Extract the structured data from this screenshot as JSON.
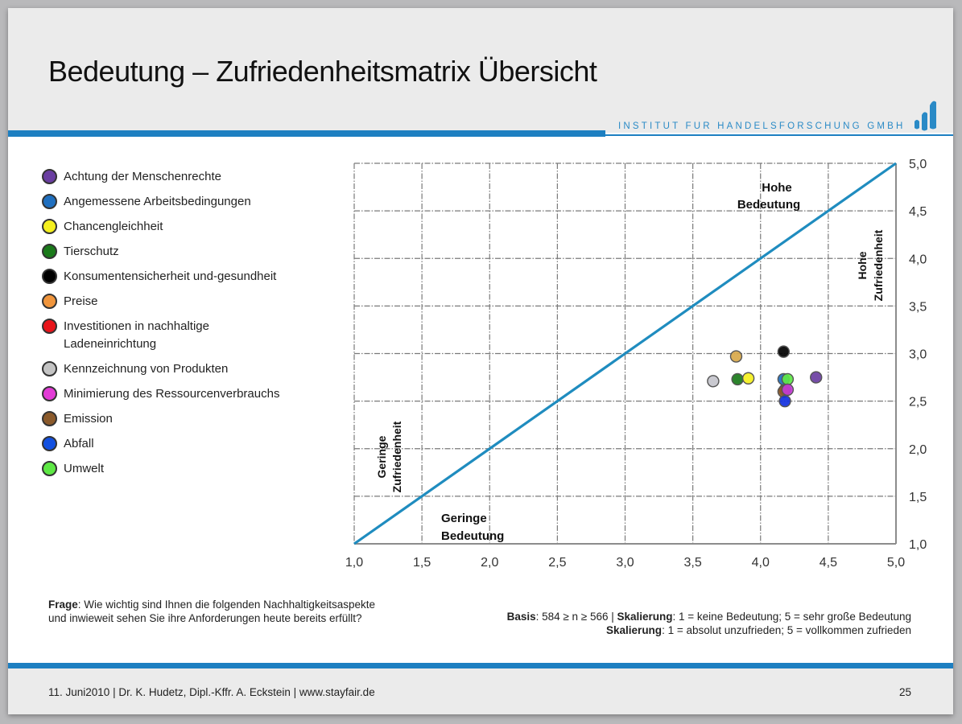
{
  "slide": {
    "title": "Bedeutung – Zufriedenheitsmatrix Übersicht",
    "brand": "INSTITUT FUR HANDELSFORSCHUNG GMBH",
    "brand_logo_icon": "bar-signal-logo-icon",
    "colors": {
      "accent": "#1d7fc1",
      "header_bg": "#ebebeb",
      "diagonal": "#1f8cbf",
      "grid": "#7a7a7a"
    }
  },
  "legend": {
    "items": [
      {
        "label": "Achtung der Menschenrechte",
        "color": "#6a3ea1"
      },
      {
        "label": "Angemessene Arbeitsbedingungen",
        "color": "#1f6fbf"
      },
      {
        "label": "Chancengleichheit",
        "color": "#f5f01e"
      },
      {
        "label": "Tierschutz",
        "color": "#1a7a1a"
      },
      {
        "label": "Konsumentensicherheit und-gesundheit",
        "color": "#000000"
      },
      {
        "label": "Preise",
        "color": "#f0953c"
      },
      {
        "label": "Investitionen in nachhaltige Ladeneinrichtung",
        "color": "#e8141a"
      },
      {
        "label": "Kennzeichnung von Produkten",
        "color": "#c4c4c4"
      },
      {
        "label": "Minimierung des Ressourcenverbrauchs",
        "color": "#e23bd6"
      },
      {
        "label": "Emission",
        "color": "#8b5a2b"
      },
      {
        "label": "Abfall",
        "color": "#1250e0"
      },
      {
        "label": "Umwelt",
        "color": "#5ee845"
      }
    ]
  },
  "chart_data": {
    "type": "scatter",
    "title": "Bedeutung – Zufriedenheitsmatrix Übersicht",
    "xlabel": "Bedeutung",
    "ylabel": "Zufriedenheit",
    "xlim": [
      1.0,
      5.0
    ],
    "ylim": [
      1.0,
      5.0
    ],
    "x_ticks": [
      "1,0",
      "1,5",
      "2,0",
      "2,5",
      "3,0",
      "3,5",
      "4,0",
      "4,5",
      "5,0"
    ],
    "y_ticks": [
      "1,0",
      "1,5",
      "2,0",
      "2,5",
      "3,0",
      "3,5",
      "4,0",
      "4,5",
      "5,0"
    ],
    "y_axis_position": "right",
    "grid": true,
    "reference_line": {
      "from": [
        1.0,
        1.0
      ],
      "to": [
        5.0,
        5.0
      ],
      "color": "#1f8cbf"
    },
    "annotations": [
      {
        "text": "Hohe Bedeutung",
        "lines": [
          "Hohe",
          "Bedeutung"
        ]
      },
      {
        "text": "Hohe Zufriedenheit",
        "lines": [
          "Hohe",
          "Zufriedenheit"
        ],
        "rotated": true
      },
      {
        "text": "Geringe Zufriedenheit",
        "lines": [
          "Geringe",
          "Zufriedenheit"
        ],
        "rotated": true
      },
      {
        "text": "Geringe Bedeutung",
        "lines": [
          "Geringe",
          "Bedeutung"
        ]
      }
    ],
    "legend_position": "left",
    "series": [
      {
        "name": "Achtung der Menschenrechte",
        "color": "#6a3ea1",
        "x": 4.41,
        "y": 2.75
      },
      {
        "name": "Angemessene Arbeitsbedingungen",
        "color": "#1f6fbf",
        "x": 4.17,
        "y": 2.73
      },
      {
        "name": "Chancengleichheit",
        "color": "#f5f01e",
        "x": 3.91,
        "y": 2.74
      },
      {
        "name": "Tierschutz",
        "color": "#1a7a1a",
        "x": 3.83,
        "y": 2.73
      },
      {
        "name": "Konsumentensicherheit und-gesundheit",
        "color": "#000000",
        "x": 4.17,
        "y": 3.02
      },
      {
        "name": "Preise",
        "color": "#d8a84a",
        "x": 3.82,
        "y": 2.97
      },
      {
        "name": "Investitionen in nachhaltige Ladeneinrichtung",
        "color": "#e8141a",
        "x": 4.18,
        "y": 2.62
      },
      {
        "name": "Kennzeichnung von Produkten",
        "color": "#c4c4cc",
        "x": 3.65,
        "y": 2.71
      },
      {
        "name": "Minimierung des Ressourcenverbrauchs",
        "color": "#c43bd6",
        "x": 4.2,
        "y": 2.62
      },
      {
        "name": "Emission",
        "color": "#8b5a2b",
        "x": 4.17,
        "y": 2.6
      },
      {
        "name": "Abfall",
        "color": "#1230e0",
        "x": 4.18,
        "y": 2.5
      },
      {
        "name": "Umwelt",
        "color": "#5ee845",
        "x": 4.2,
        "y": 2.73
      }
    ]
  },
  "notes": {
    "question_label": "Frage",
    "question_text": ": Wie wichtig sind Ihnen die folgenden Nachhaltigkeitsaspekte und inwieweit sehen Sie ihre Anforderungen heute bereits erfüllt?",
    "basis_label": "Basis",
    "basis_text": ": 584 ≥ n ≥ 566 | ",
    "scale1_label": "Skalierung",
    "scale1_text": ": 1 = keine Bedeutung; 5 = sehr große Bedeutung",
    "scale2_label": "Skalierung",
    "scale2_text": ": 1 = absolut unzufrieden; 5 = vollkommen zufrieden"
  },
  "footer": {
    "text": "11. Juni2010 | Dr. K. Hudetz, Dipl.-Kffr. A. Eckstein | www.stayfair.de",
    "page_number": "25"
  }
}
